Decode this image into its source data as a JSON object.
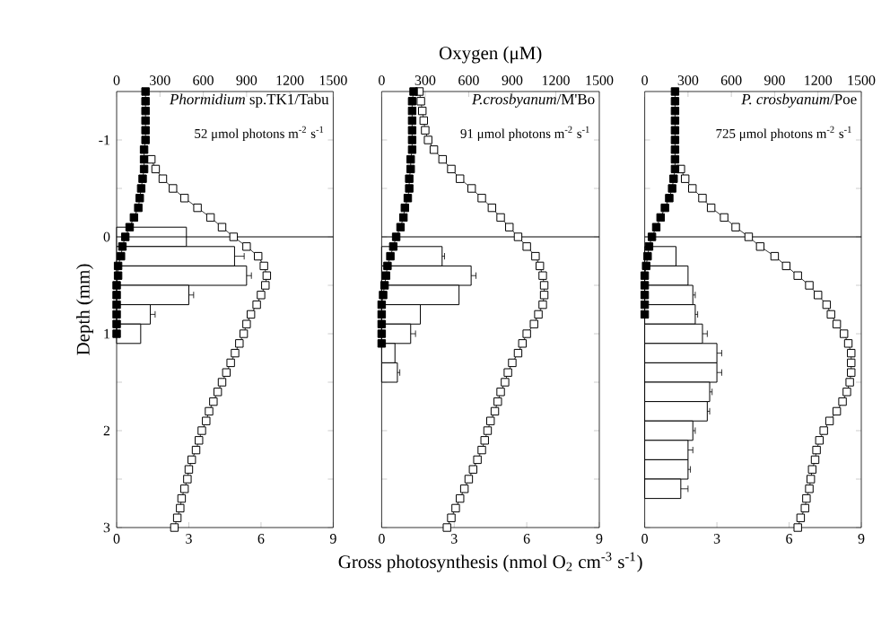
{
  "chart_data": [
    {
      "type": "bar",
      "orientation": "horizontal",
      "title": "*Phormidium* sp.TK1/Tabu",
      "subtitle": "52 μmol photons m$^{-2}$ s$^{-1}$",
      "ylabel": "Depth (mm)",
      "xlim": [
        0,
        9
      ],
      "xticks": [
        0,
        3,
        6,
        9
      ],
      "x2lim": [
        0,
        1500
      ],
      "x2ticks": [
        0,
        300,
        600,
        900,
        1200,
        1500
      ],
      "ylim": [
        3,
        -1.5
      ],
      "yticks": [
        -1,
        {
          "value": -0.5,
          "label": null
        },
        0,
        {
          "value": 0.5,
          "label": null
        },
        1,
        {
          "value": 1.5,
          "label": null
        },
        2,
        {
          "value": 2.5,
          "label": null
        },
        3
      ],
      "ref_lines": [
        {
          "axis": "y",
          "value": 0,
          "color": "#000000"
        }
      ],
      "series": [
        {
          "color": "#ffffff",
          "x": [
            0,
            0.2,
            0.4,
            0.6,
            0.8,
            1.0
          ],
          "values": [
            2.9,
            4.9,
            5.4,
            3.0,
            1.4,
            1.0
          ],
          "errors": [
            null,
            0.4,
            0.2,
            0.2,
            0.2,
            null
          ]
        },
        {
          "type": "line",
          "axis": "x2",
          "marker": "square",
          "line_style": "solid",
          "color": "#ffffff",
          "x": [
            -0.8,
            -0.7,
            -0.6,
            -0.5,
            -0.4,
            -0.3,
            -0.2,
            -0.1,
            0,
            0.1,
            0.2,
            0.3,
            0.4,
            0.5,
            0.6,
            0.7,
            0.8,
            0.9,
            1.0,
            1.1,
            1.2,
            1.3,
            1.4,
            1.5,
            1.6,
            1.7,
            1.8,
            1.9,
            2.0,
            2.1,
            2.2,
            2.3,
            2.4,
            2.5,
            2.6,
            2.7,
            2.8,
            2.9,
            3.0
          ],
          "values": [
            240,
            270,
            320,
            390,
            470,
            560,
            650,
            730,
            810,
            900,
            980,
            1020,
            1040,
            1030,
            1000,
            970,
            930,
            900,
            880,
            850,
            820,
            790,
            760,
            730,
            700,
            670,
            640,
            620,
            590,
            570,
            550,
            520,
            500,
            490,
            470,
            450,
            440,
            420,
            400
          ]
        },
        {
          "type": "line",
          "axis": "x2",
          "marker": "square",
          "line_style": "solid",
          "color": "#000000",
          "x": [
            -1.5,
            -1.4,
            -1.3,
            -1.2,
            -1.1,
            -1.0,
            -0.9,
            -0.8,
            -0.7,
            -0.6,
            -0.5,
            -0.4,
            -0.3,
            -0.2,
            -0.1,
            0,
            0.1,
            0.2,
            0.3,
            0.4,
            0.5,
            0.6,
            0.7,
            0.8,
            0.9,
            1.0
          ],
          "values": [
            200,
            200,
            200,
            200,
            200,
            200,
            190,
            190,
            190,
            180,
            170,
            160,
            150,
            120,
            90,
            60,
            40,
            30,
            10,
            10,
            0,
            0,
            0,
            0,
            0,
            0
          ]
        }
      ]
    },
    {
      "type": "bar",
      "orientation": "horizontal",
      "title": "*P.crosbyanum*/M'Bo",
      "subtitle": "91 μmol photons m$^{-2}$ s$^{-1}$",
      "xlabel": "Gross photosynthesis (nmol O$_{2}$ cm$^{-3}$ s$^{-1}$)",
      "x2label": "Oxygen (μM)",
      "tick_labels": "x",
      "xlim": [
        0,
        9
      ],
      "xticks": [
        0,
        3,
        6,
        9
      ],
      "x2lim": [
        0,
        1500
      ],
      "x2ticks": [
        0,
        300,
        600,
        900,
        1200,
        1500
      ],
      "ylim": [
        3,
        -1.5
      ],
      "yticks": [
        -1,
        {
          "value": -0.5,
          "label": null
        },
        0,
        {
          "value": 0.5,
          "label": null
        },
        1,
        {
          "value": 1.5,
          "label": null
        },
        2,
        {
          "value": 2.5,
          "label": null
        },
        3
      ],
      "ref_lines": [
        {
          "axis": "y",
          "value": 0,
          "color": "#000000"
        }
      ],
      "series": [
        {
          "color": "#ffffff",
          "x": [
            0.2,
            0.4,
            0.6,
            0.8,
            1.0,
            1.2,
            1.4
          ],
          "values": [
            2.5,
            3.7,
            3.2,
            1.6,
            1.2,
            0.55,
            0.65
          ],
          "errors": [
            0.1,
            0.2,
            null,
            null,
            0.2,
            null,
            0.1
          ]
        },
        {
          "type": "line",
          "axis": "x2",
          "marker": "square",
          "line_style": "solid",
          "color": "#ffffff",
          "x": [
            -1.5,
            -1.4,
            -1.3,
            -1.2,
            -1.1,
            -1.0,
            -0.9,
            -0.8,
            -0.7,
            -0.6,
            -0.5,
            -0.4,
            -0.3,
            -0.2,
            -0.1,
            0,
            0.1,
            0.2,
            0.3,
            0.4,
            0.5,
            0.6,
            0.7,
            0.8,
            0.9,
            1.0,
            1.1,
            1.2,
            1.3,
            1.4,
            1.5,
            1.6,
            1.7,
            1.8,
            1.9,
            2.0,
            2.1,
            2.2,
            2.3,
            2.4,
            2.5,
            2.6,
            2.7,
            2.8,
            2.9,
            3.0
          ],
          "values": [
            260,
            270,
            280,
            290,
            300,
            320,
            360,
            420,
            480,
            540,
            620,
            690,
            760,
            820,
            880,
            940,
            1000,
            1060,
            1090,
            1110,
            1120,
            1120,
            1110,
            1080,
            1050,
            1000,
            970,
            940,
            900,
            870,
            850,
            820,
            800,
            780,
            750,
            730,
            710,
            690,
            660,
            630,
            600,
            570,
            540,
            510,
            480,
            450
          ]
        },
        {
          "type": "line",
          "axis": "x2",
          "marker": "square",
          "line_style": "solid",
          "color": "#000000",
          "x": [
            -1.5,
            -1.4,
            -1.3,
            -1.2,
            -1.1,
            -1.0,
            -0.9,
            -0.8,
            -0.7,
            -0.6,
            -0.5,
            -0.4,
            -0.3,
            -0.2,
            -0.1,
            0,
            0.1,
            0.2,
            0.3,
            0.4,
            0.5,
            0.6,
            0.7,
            0.8,
            0.9,
            1.0,
            1.1
          ],
          "values": [
            220,
            210,
            210,
            210,
            210,
            210,
            210,
            200,
            200,
            190,
            190,
            180,
            160,
            150,
            130,
            100,
            80,
            60,
            40,
            30,
            20,
            10,
            0,
            0,
            0,
            0,
            0
          ]
        }
      ]
    },
    {
      "type": "bar",
      "orientation": "horizontal",
      "title": "*P. crosbyanum*/Poe",
      "subtitle": "725 μmol photons m$^{-2}$ s$^{-1}$",
      "tick_labels": "x",
      "xlim": [
        0,
        9
      ],
      "xticks": [
        0,
        3,
        6,
        9
      ],
      "x2lim": [
        0,
        1500
      ],
      "x2ticks": [
        0,
        300,
        600,
        900,
        1200,
        1500
      ],
      "ylim": [
        3,
        -1.5
      ],
      "yticks": [
        -1,
        {
          "value": -0.5,
          "label": null
        },
        0,
        {
          "value": 0.5,
          "label": null
        },
        1,
        {
          "value": 1.5,
          "label": null
        },
        2,
        {
          "value": 2.5,
          "label": null
        },
        3
      ],
      "ref_lines": [
        {
          "axis": "y",
          "value": 0,
          "color": "#000000"
        }
      ],
      "series": [
        {
          "color": "#ffffff",
          "x": [
            0.2,
            0.4,
            0.6,
            0.8,
            1.0,
            1.2,
            1.4,
            1.6,
            1.8,
            2.0,
            2.2,
            2.4,
            2.6
          ],
          "values": [
            1.3,
            1.8,
            2.0,
            2.1,
            2.4,
            3.0,
            3.0,
            2.7,
            2.6,
            2.0,
            1.8,
            1.8,
            1.5
          ],
          "errors": [
            null,
            null,
            0.1,
            0.1,
            0.2,
            0.2,
            0.2,
            0.1,
            0.1,
            0.1,
            0.2,
            0.1,
            0.3
          ]
        },
        {
          "type": "line",
          "axis": "x2",
          "marker": "square",
          "line_style": "solid",
          "color": "#ffffff",
          "x": [
            -0.7,
            -0.6,
            -0.5,
            -0.4,
            -0.3,
            -0.2,
            -0.1,
            0,
            0.1,
            0.2,
            0.3,
            0.4,
            0.5,
            0.6,
            0.7,
            0.8,
            0.9,
            1.0,
            1.1,
            1.2,
            1.3,
            1.4,
            1.5,
            1.6,
            1.7,
            1.8,
            1.9,
            2.0,
            2.1,
            2.2,
            2.3,
            2.4,
            2.5,
            2.6,
            2.7,
            2.8,
            2.9,
            3.0
          ],
          "values": [
            250,
            280,
            330,
            400,
            460,
            550,
            630,
            720,
            800,
            900,
            980,
            1060,
            1140,
            1200,
            1260,
            1290,
            1330,
            1380,
            1410,
            1430,
            1430,
            1430,
            1420,
            1400,
            1370,
            1330,
            1280,
            1240,
            1210,
            1190,
            1180,
            1160,
            1150,
            1140,
            1120,
            1110,
            1080,
            1060
          ]
        },
        {
          "type": "line",
          "axis": "x2",
          "marker": "square",
          "line_style": "solid",
          "color": "#000000",
          "x": [
            -1.5,
            -1.4,
            -1.3,
            -1.2,
            -1.1,
            -1.0,
            -0.9,
            -0.8,
            -0.7,
            -0.6,
            -0.5,
            -0.4,
            -0.3,
            -0.2,
            -0.1,
            0,
            0.1,
            0.2,
            0.3,
            0.4,
            0.5,
            0.6,
            0.7,
            0.8
          ],
          "values": [
            210,
            210,
            210,
            210,
            210,
            210,
            210,
            210,
            210,
            200,
            190,
            170,
            140,
            110,
            80,
            50,
            30,
            20,
            10,
            0,
            0,
            0,
            0,
            0
          ]
        }
      ]
    }
  ]
}
